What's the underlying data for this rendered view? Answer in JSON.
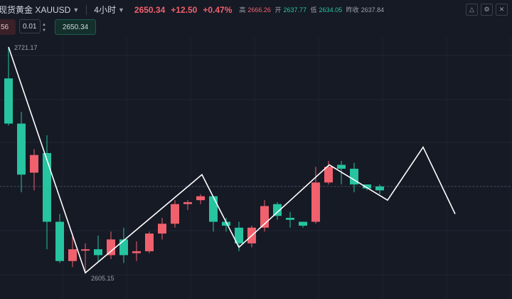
{
  "header": {
    "symbol": "现货黄金 XAUUSD",
    "timeframe": "4小时",
    "price": "2650.34",
    "change": "+12.50",
    "change_pct": "+0.47%",
    "ohlc": [
      {
        "label": "高",
        "value": "2666.26",
        "tone": "red"
      },
      {
        "label": "开",
        "value": "2637.77",
        "tone": "green"
      },
      {
        "label": "低",
        "value": "2634.05",
        "tone": "green"
      },
      {
        "label": "昨收",
        "value": "2637.84",
        "tone": "grey"
      }
    ],
    "icons": [
      "triangle-up-icon",
      "settings-icon",
      "close-icon"
    ]
  },
  "trade": {
    "sell_price": "56",
    "quantity": "0.01",
    "buy_price": "2650.34"
  },
  "colors": {
    "background": "#161a25",
    "up": "#f0616d",
    "down": "#26c4a0",
    "zigzag": "#ffffff"
  },
  "chart_data": {
    "type": "candlestick",
    "price_ylim": [
      2590,
      2730
    ],
    "annotations": {
      "high_label": "2721.17",
      "low_label": "2605.15"
    },
    "candles": [
      {
        "o": 2705,
        "h": 2721,
        "l": 2681,
        "c": 2682
      },
      {
        "o": 2682,
        "h": 2688,
        "l": 2647,
        "c": 2656
      },
      {
        "o": 2657,
        "h": 2669,
        "l": 2648,
        "c": 2666
      },
      {
        "o": 2667,
        "h": 2676,
        "l": 2618,
        "c": 2632
      },
      {
        "o": 2632,
        "h": 2636,
        "l": 2611,
        "c": 2612
      },
      {
        "o": 2612,
        "h": 2626,
        "l": 2609,
        "c": 2618
      },
      {
        "o": 2618,
        "h": 2621,
        "l": 2606,
        "c": 2618
      },
      {
        "o": 2618,
        "h": 2625,
        "l": 2612,
        "c": 2615
      },
      {
        "o": 2615,
        "h": 2627,
        "l": 2613,
        "c": 2623
      },
      {
        "o": 2623,
        "h": 2629,
        "l": 2611,
        "c": 2615
      },
      {
        "o": 2616,
        "h": 2622,
        "l": 2612,
        "c": 2617
      },
      {
        "o": 2617,
        "h": 2627,
        "l": 2616,
        "c": 2626
      },
      {
        "o": 2626,
        "h": 2634,
        "l": 2623,
        "c": 2631
      },
      {
        "o": 2631,
        "h": 2643,
        "l": 2629,
        "c": 2641
      },
      {
        "o": 2641,
        "h": 2643,
        "l": 2638,
        "c": 2642
      },
      {
        "o": 2643,
        "h": 2646,
        "l": 2641,
        "c": 2645
      },
      {
        "o": 2645,
        "h": 2645,
        "l": 2627,
        "c": 2632
      },
      {
        "o": 2632,
        "h": 2634,
        "l": 2627,
        "c": 2630
      },
      {
        "o": 2629,
        "h": 2632,
        "l": 2617,
        "c": 2621
      },
      {
        "o": 2621,
        "h": 2630,
        "l": 2619,
        "c": 2629
      },
      {
        "o": 2629,
        "h": 2643,
        "l": 2627,
        "c": 2640
      },
      {
        "o": 2641,
        "h": 2642,
        "l": 2633,
        "c": 2635
      },
      {
        "o": 2634,
        "h": 2637,
        "l": 2629,
        "c": 2633
      },
      {
        "o": 2632,
        "h": 2632,
        "l": 2629,
        "c": 2630
      },
      {
        "o": 2632,
        "h": 2660,
        "l": 2631,
        "c": 2652
      },
      {
        "o": 2652,
        "h": 2663,
        "l": 2651,
        "c": 2660
      },
      {
        "o": 2661,
        "h": 2663,
        "l": 2651,
        "c": 2659
      },
      {
        "o": 2659,
        "h": 2662,
        "l": 2647,
        "c": 2651
      },
      {
        "o": 2651,
        "h": 2651,
        "l": 2648,
        "c": 2649
      },
      {
        "o": 2650,
        "h": 2651,
        "l": 2646,
        "c": 2648
      }
    ],
    "zigzag": [
      2721,
      2606,
      2656,
      2619,
      2661,
      2643,
      2670,
      2636
    ]
  }
}
